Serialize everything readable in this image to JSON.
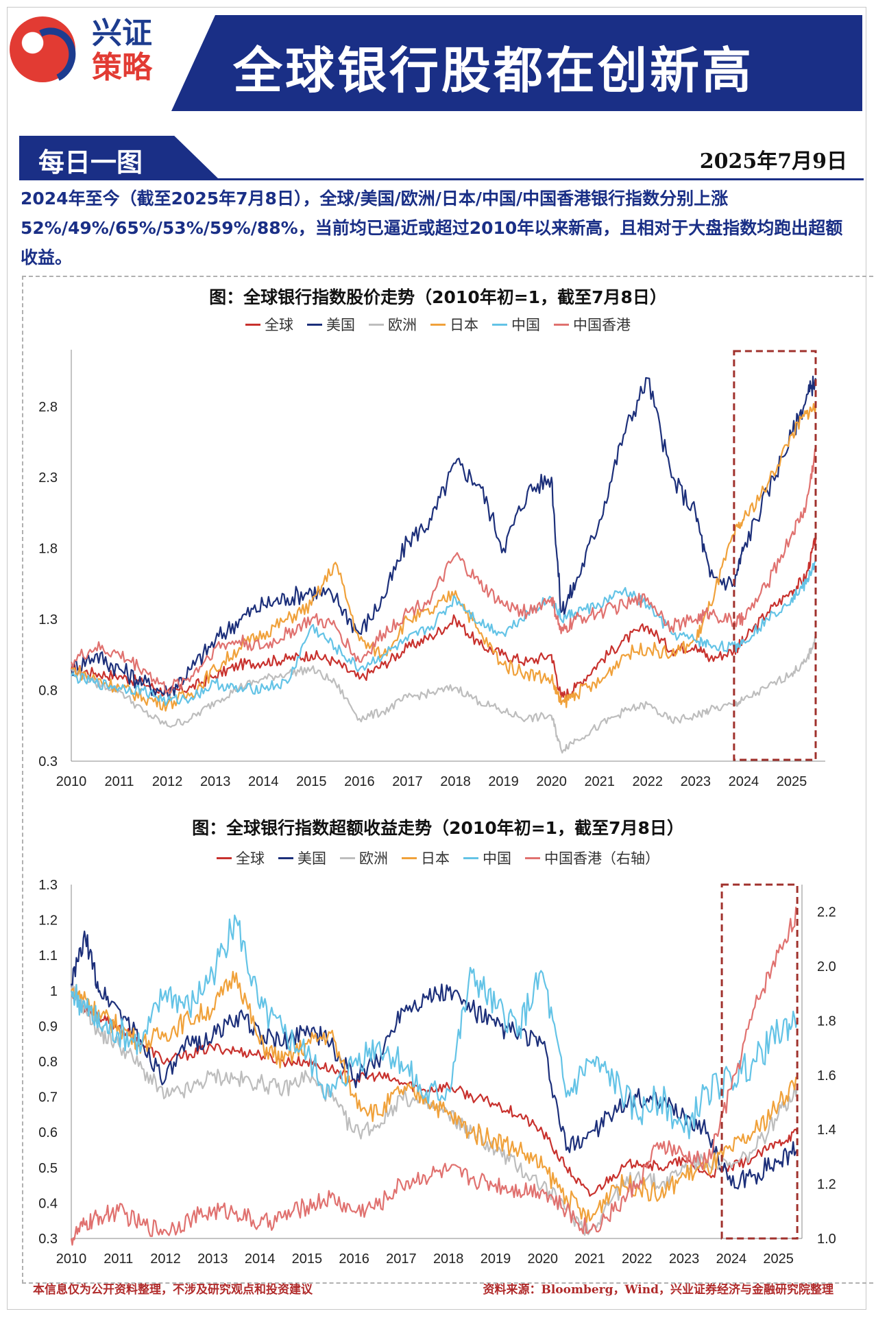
{
  "header": {
    "brand_line1": "兴证",
    "brand_line2": "策略",
    "title": "全球银行股都在创新高"
  },
  "section": {
    "label": "每日一图",
    "date": "2025年7月9日",
    "summary": "2024年至今（截至2025年7月8日），全球/美国/欧洲/日本/中国/中国香港银行指数分别上涨52%/49%/65%/53%/59%/88%，当前均已逼近或超过2010年以来新高，且相对于大盘指数均跑出超额收益。"
  },
  "colors": {
    "global": "#c8312d",
    "us": "#1c2f7a",
    "europe": "#bdbdbd",
    "japan": "#f0a13a",
    "china": "#63c3e6",
    "hk": "#e0716f",
    "highlight": "#a0312c"
  },
  "chart_data": [
    {
      "type": "line",
      "title": "图：全球银行指数股价走势（2010年初=1，截至7月8日）",
      "x": [
        2010.0,
        2010.5,
        2011.0,
        2011.5,
        2012.0,
        2012.5,
        2013.0,
        2013.5,
        2014.0,
        2014.5,
        2015.0,
        2015.5,
        2016.0,
        2016.5,
        2017.0,
        2017.5,
        2018.0,
        2018.5,
        2019.0,
        2019.5,
        2020.0,
        2020.2,
        2020.5,
        2021.0,
        2021.5,
        2022.0,
        2022.5,
        2023.0,
        2023.3,
        2023.8,
        2024.0,
        2024.5,
        2025.0,
        2025.3,
        2025.5
      ],
      "xticks": [
        "2010",
        "2011",
        "2012",
        "2013",
        "2014",
        "2015",
        "2016",
        "2017",
        "2018",
        "2019",
        "2020",
        "2021",
        "2022",
        "2023",
        "2024",
        "2025"
      ],
      "yticks": [
        "0.3",
        "0.8",
        "1.3",
        "1.8",
        "2.3",
        "2.8"
      ],
      "ylim": [
        0.3,
        3.2
      ],
      "xlim": [
        2010,
        2025.7
      ],
      "highlight_range": [
        2023.8,
        2025.5
      ],
      "series": [
        {
          "name": "全球",
          "color_key": "global",
          "values": [
            0.95,
            0.92,
            0.9,
            0.85,
            0.78,
            0.82,
            0.9,
            0.98,
            1.0,
            1.02,
            1.05,
            1.0,
            0.88,
            0.98,
            1.1,
            1.18,
            1.3,
            1.12,
            1.05,
            1.0,
            1.05,
            0.75,
            0.82,
            1.0,
            1.15,
            1.25,
            1.08,
            1.12,
            1.02,
            1.08,
            1.15,
            1.35,
            1.5,
            1.6,
            1.87
          ]
        },
        {
          "name": "美国",
          "color_key": "us",
          "values": [
            0.95,
            1.05,
            0.95,
            0.85,
            0.78,
            0.95,
            1.15,
            1.3,
            1.4,
            1.45,
            1.5,
            1.45,
            1.2,
            1.45,
            1.85,
            2.0,
            2.4,
            2.25,
            1.8,
            2.2,
            2.3,
            1.35,
            1.55,
            2.0,
            2.6,
            3.0,
            2.3,
            2.05,
            1.6,
            1.55,
            1.8,
            2.2,
            2.6,
            2.85,
            3.0
          ]
        },
        {
          "name": "欧洲",
          "color_key": "europe",
          "values": [
            0.95,
            0.85,
            0.8,
            0.65,
            0.55,
            0.6,
            0.72,
            0.82,
            0.88,
            0.92,
            0.95,
            0.85,
            0.6,
            0.65,
            0.75,
            0.78,
            0.82,
            0.72,
            0.65,
            0.6,
            0.62,
            0.38,
            0.45,
            0.55,
            0.65,
            0.7,
            0.58,
            0.62,
            0.66,
            0.7,
            0.73,
            0.82,
            0.92,
            1.0,
            1.17
          ]
        },
        {
          "name": "日本",
          "color_key": "japan",
          "values": [
            0.95,
            0.88,
            0.82,
            0.75,
            0.7,
            0.78,
            0.95,
            1.1,
            1.2,
            1.3,
            1.4,
            1.7,
            1.15,
            1.05,
            1.3,
            1.35,
            1.5,
            1.2,
            0.98,
            0.92,
            0.88,
            0.7,
            0.78,
            0.85,
            1.05,
            1.1,
            1.05,
            1.15,
            1.4,
            1.9,
            2.0,
            2.25,
            2.6,
            2.75,
            2.8
          ]
        },
        {
          "name": "中国",
          "color_key": "china",
          "values": [
            0.9,
            0.85,
            0.82,
            0.8,
            0.72,
            0.75,
            0.85,
            0.8,
            0.82,
            0.85,
            1.25,
            1.1,
            0.95,
            1.05,
            1.15,
            1.25,
            1.45,
            1.28,
            1.2,
            1.35,
            1.45,
            1.3,
            1.35,
            1.4,
            1.5,
            1.4,
            1.2,
            1.15,
            1.12,
            1.1,
            1.15,
            1.3,
            1.45,
            1.55,
            1.72
          ]
        },
        {
          "name": "中国香港",
          "color_key": "hk",
          "values": [
            1.0,
            1.1,
            1.05,
            0.95,
            0.8,
            0.9,
            1.1,
            1.15,
            1.1,
            1.2,
            1.3,
            1.25,
            1.0,
            1.2,
            1.35,
            1.45,
            1.75,
            1.55,
            1.4,
            1.35,
            1.45,
            1.2,
            1.3,
            1.35,
            1.4,
            1.45,
            1.25,
            1.3,
            1.35,
            1.28,
            1.3,
            1.55,
            1.9,
            2.1,
            2.5
          ]
        }
      ]
    },
    {
      "type": "line",
      "title": "图：全球银行指数超额收益走势（2010年初=1，截至7月8日）",
      "x": [
        2010.0,
        2010.3,
        2010.6,
        2011.0,
        2011.5,
        2012.0,
        2012.5,
        2013.0,
        2013.5,
        2014.0,
        2014.5,
        2015.0,
        2015.5,
        2016.0,
        2016.5,
        2017.0,
        2017.5,
        2018.0,
        2018.5,
        2019.0,
        2019.5,
        2020.0,
        2020.5,
        2021.0,
        2021.5,
        2022.0,
        2022.5,
        2023.0,
        2023.5,
        2024.0,
        2024.5,
        2025.0,
        2025.4
      ],
      "xticks": [
        "2010",
        "2011",
        "2012",
        "2013",
        "2014",
        "2015",
        "2016",
        "2017",
        "2018",
        "2019",
        "2020",
        "2021",
        "2022",
        "2023",
        "2024",
        "2025"
      ],
      "yticks_left": [
        "0.3",
        "0.4",
        "0.5",
        "0.6",
        "0.7",
        "0.8",
        "0.9",
        "1",
        "1.1",
        "1.2",
        "1.3"
      ],
      "yticks_right": [
        "1.0",
        "1.2",
        "1.4",
        "1.6",
        "1.8",
        "2.0",
        "2.2"
      ],
      "ylim_left": [
        0.3,
        1.3
      ],
      "ylim_right": [
        1.0,
        2.3
      ],
      "xlim": [
        2010,
        2025.5
      ],
      "highlight_range": [
        2023.8,
        2025.4
      ],
      "series": [
        {
          "name": "全球",
          "axis": "left",
          "color_key": "global",
          "values": [
            1.0,
            0.95,
            0.92,
            0.9,
            0.85,
            0.8,
            0.82,
            0.84,
            0.83,
            0.82,
            0.8,
            0.8,
            0.78,
            0.75,
            0.76,
            0.74,
            0.72,
            0.73,
            0.7,
            0.68,
            0.65,
            0.6,
            0.5,
            0.42,
            0.48,
            0.52,
            0.5,
            0.52,
            0.48,
            0.5,
            0.53,
            0.57,
            0.6
          ]
        },
        {
          "name": "美国",
          "axis": "left",
          "color_key": "us",
          "values": [
            1.02,
            1.15,
            1.0,
            0.95,
            0.85,
            0.75,
            0.85,
            0.87,
            0.93,
            0.88,
            0.85,
            0.9,
            0.85,
            0.75,
            0.8,
            0.95,
            0.98,
            1.0,
            0.95,
            0.9,
            0.88,
            0.85,
            0.55,
            0.6,
            0.65,
            0.7,
            0.68,
            0.65,
            0.6,
            0.45,
            0.48,
            0.52,
            0.55
          ]
        },
        {
          "name": "欧洲",
          "axis": "left",
          "color_key": "europe",
          "values": [
            1.0,
            0.95,
            0.88,
            0.85,
            0.78,
            0.7,
            0.72,
            0.76,
            0.75,
            0.74,
            0.72,
            0.76,
            0.7,
            0.6,
            0.62,
            0.7,
            0.68,
            0.65,
            0.6,
            0.55,
            0.5,
            0.45,
            0.38,
            0.32,
            0.42,
            0.48,
            0.45,
            0.5,
            0.52,
            0.5,
            0.55,
            0.65,
            0.73
          ]
        },
        {
          "name": "日本",
          "axis": "left",
          "color_key": "japan",
          "values": [
            1.0,
            0.98,
            0.93,
            0.9,
            0.85,
            0.88,
            0.92,
            0.95,
            1.05,
            0.85,
            0.8,
            0.85,
            0.88,
            0.7,
            0.65,
            0.72,
            0.7,
            0.65,
            0.6,
            0.58,
            0.55,
            0.5,
            0.42,
            0.35,
            0.45,
            0.45,
            0.42,
            0.48,
            0.5,
            0.55,
            0.6,
            0.68,
            0.75
          ]
        },
        {
          "name": "中国",
          "axis": "left",
          "color_key": "china",
          "values": [
            1.0,
            0.95,
            0.9,
            0.88,
            0.85,
            1.0,
            0.95,
            1.05,
            1.2,
            0.95,
            0.88,
            0.82,
            0.7,
            0.8,
            0.85,
            0.8,
            0.7,
            0.72,
            1.05,
            0.95,
            0.9,
            1.05,
            0.7,
            0.8,
            0.75,
            0.65,
            0.7,
            0.6,
            0.72,
            0.75,
            0.8,
            0.88,
            0.92
          ]
        },
        {
          "name": "中国香港（右轴）",
          "axis": "right",
          "color_key": "hk",
          "values": [
            1.0,
            1.05,
            1.08,
            1.1,
            1.05,
            1.03,
            1.07,
            1.1,
            1.1,
            1.05,
            1.08,
            1.12,
            1.15,
            1.1,
            1.12,
            1.2,
            1.23,
            1.25,
            1.22,
            1.2,
            1.18,
            1.18,
            1.1,
            1.03,
            1.1,
            1.2,
            1.35,
            1.3,
            1.28,
            1.55,
            1.85,
            2.05,
            2.2
          ]
        }
      ]
    }
  ],
  "footer": {
    "disclaimer": "本信息仅为公开资料整理，不涉及研究观点和投资建议",
    "source": "资料来源：Bloomberg，Wind，兴业证券经济与金融研究院整理"
  }
}
